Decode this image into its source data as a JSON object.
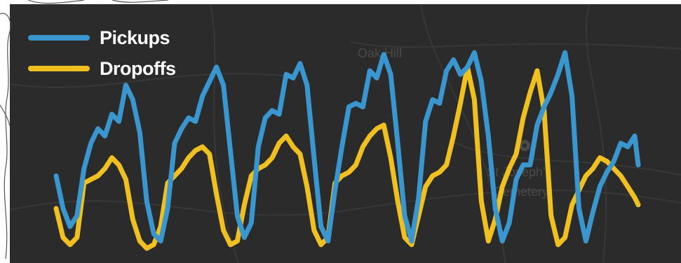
{
  "colors": {
    "map_background": "#2b2b2b",
    "map_roads": "#3a3a3a",
    "map_label": "#4a4a4a",
    "pickups": "#3a96cf",
    "dropoffs": "#f0c020"
  },
  "map": {
    "labels": [
      "Oak Hill",
      "St Joseph's",
      "Cemetery"
    ],
    "marker_icon": "map-pin-icon"
  },
  "chart_data": {
    "type": "line",
    "title": "",
    "xlabel": "",
    "ylabel": "",
    "grid": false,
    "legend_position": "top-left",
    "ylim": [
      0,
      100
    ],
    "series": [
      {
        "name": "Pickups",
        "color": "#3a96cf",
        "x": [
          0,
          2,
          4,
          6,
          8,
          10,
          12,
          14,
          16,
          18,
          20,
          22,
          24,
          26,
          28,
          30,
          32,
          34,
          36,
          38,
          40,
          42,
          44,
          46,
          48,
          50,
          52,
          54,
          56,
          58,
          60,
          62,
          64,
          66,
          68,
          70,
          72,
          74,
          76,
          78,
          80,
          82,
          84,
          86,
          88,
          90,
          92,
          94,
          96,
          98,
          100,
          102,
          104,
          106,
          108,
          110,
          112,
          114,
          116,
          118,
          120,
          122,
          124,
          126,
          128,
          130,
          132,
          134,
          136,
          138,
          140,
          142,
          144,
          146,
          148,
          150,
          152,
          154,
          156,
          158,
          160,
          162,
          164,
          166,
          167
        ],
        "values": [
          40,
          22,
          12,
          18,
          44,
          58,
          66,
          62,
          74,
          70,
          90,
          82,
          64,
          26,
          8,
          4,
          22,
          58,
          66,
          72,
          70,
          84,
          92,
          100,
          90,
          54,
          18,
          6,
          14,
          56,
          72,
          76,
          74,
          96,
          94,
          102,
          90,
          50,
          12,
          4,
          32,
          56,
          78,
          80,
          78,
          98,
          94,
          107,
          96,
          58,
          18,
          4,
          28,
          70,
          82,
          80,
          98,
          104,
          96,
          100,
          108,
          92,
          62,
          22,
          4,
          14,
          38,
          46,
          46,
          68,
          78,
          86,
          96,
          108,
          84,
          22,
          4,
          20,
          34,
          42,
          48,
          58,
          56,
          62,
          46
        ]
      },
      {
        "name": "Dropoffs",
        "color": "#f0c020",
        "x": [
          0,
          2,
          4,
          6,
          8,
          10,
          12,
          14,
          16,
          18,
          20,
          22,
          24,
          26,
          28,
          30,
          32,
          34,
          36,
          38,
          40,
          42,
          44,
          46,
          48,
          50,
          52,
          54,
          56,
          58,
          60,
          62,
          64,
          66,
          68,
          70,
          72,
          74,
          76,
          78,
          80,
          82,
          84,
          86,
          88,
          90,
          92,
          94,
          96,
          98,
          100,
          102,
          104,
          106,
          108,
          110,
          112,
          114,
          116,
          118,
          120,
          122,
          124,
          126,
          128,
          130,
          132,
          134,
          136,
          138,
          140,
          142,
          144,
          146,
          148,
          150,
          152,
          154,
          156,
          158,
          160,
          162,
          164,
          166,
          167
        ],
        "values": [
          22,
          6,
          2,
          6,
          36,
          38,
          40,
          44,
          50,
          46,
          38,
          16,
          4,
          0,
          2,
          12,
          36,
          40,
          44,
          50,
          54,
          56,
          52,
          30,
          10,
          2,
          4,
          24,
          40,
          44,
          46,
          50,
          58,
          62,
          56,
          52,
          34,
          10,
          2,
          6,
          36,
          40,
          42,
          46,
          56,
          62,
          66,
          68,
          50,
          26,
          6,
          2,
          18,
          34,
          40,
          42,
          46,
          62,
          80,
          100,
          82,
          26,
          4,
          16,
          34,
          44,
          52,
          72,
          86,
          98,
          76,
          18,
          2,
          6,
          24,
          32,
          40,
          44,
          50,
          48,
          44,
          40,
          34,
          28,
          24
        ]
      }
    ]
  }
}
